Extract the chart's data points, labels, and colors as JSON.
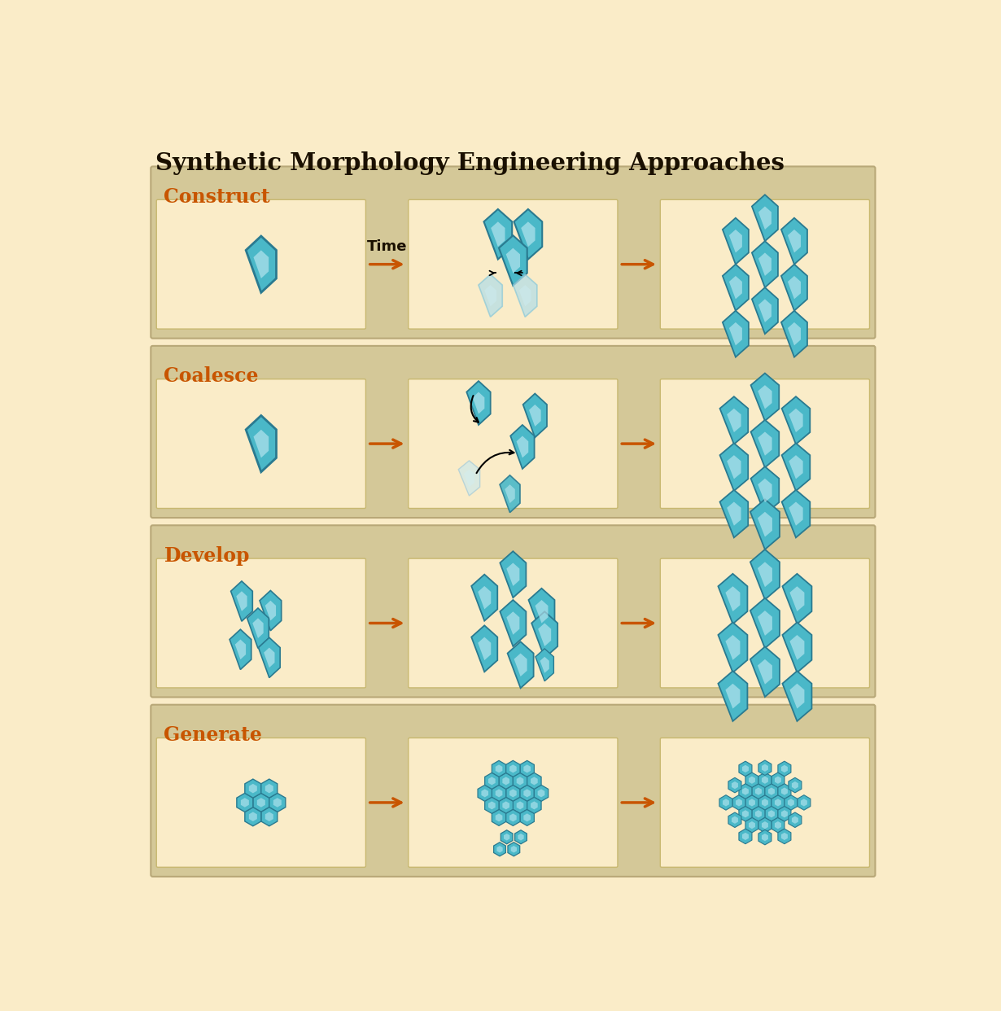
{
  "title": "Synthetic Morphology Engineering Approaches",
  "title_fontsize": 21,
  "title_color": "#1a1000",
  "bg_color": "#faecc8",
  "section_bg": "#d4c898",
  "panel_bg": "#faecc8",
  "hex_color_main": "#4ab8c8",
  "hex_color_edge": "#2a7a90",
  "hex_color_light": "#b0dde8",
  "hex_color_ghost": "#c8e8ed",
  "arrow_color": "#c85500",
  "text_color_section": "#c85500",
  "sections": [
    "Construct",
    "Coalesce",
    "Develop",
    "Generate"
  ],
  "section_label_fontsize": 17,
  "time_label_fontsize": 13
}
